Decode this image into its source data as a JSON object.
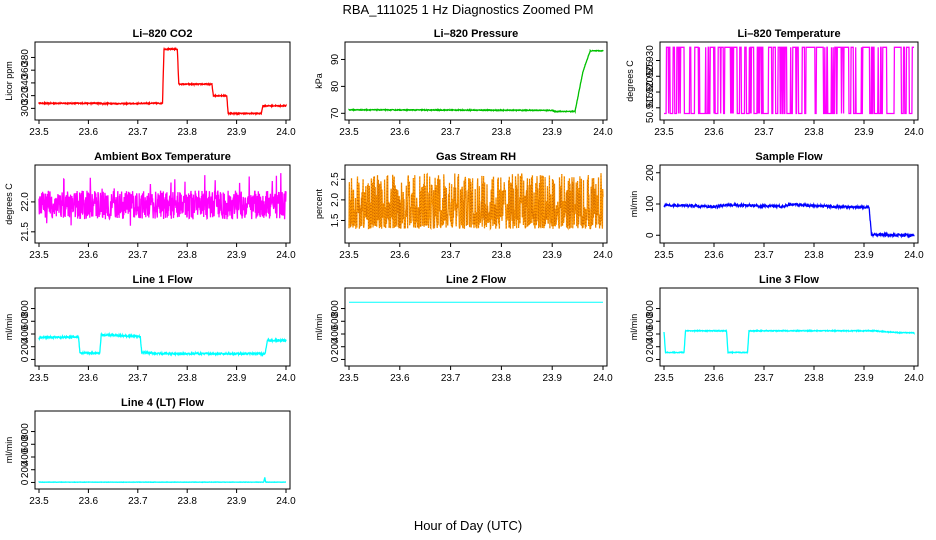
{
  "figure": {
    "title": "RBA_111025  1 Hz Diagnostics Zoomed PM",
    "xlabel": "Hour of Day (UTC)"
  },
  "chart_data": [
    {
      "id": "co2",
      "type": "line",
      "title": "Li–820 CO2",
      "ylabel": "Licor ppm",
      "color": "#ff0000",
      "xlim": [
        23.5,
        24.0
      ],
      "ylim": [
        288,
        398
      ],
      "xticks": [
        23.5,
        23.6,
        23.7,
        23.8,
        23.9,
        24.0
      ],
      "xtick_labels": [
        "23.5",
        "23.6",
        "23.7",
        "23.8",
        "23.9",
        "24.0"
      ],
      "yticks": [
        300,
        320,
        340,
        360,
        380
      ],
      "ytick_labels": [
        "300",
        "320",
        "340",
        "360",
        "380"
      ],
      "noise": 0.8,
      "segments": [
        [
          23.5,
          308
        ],
        [
          23.62,
          308
        ],
        [
          23.63,
          307.5
        ],
        [
          23.7,
          307.5
        ],
        [
          23.71,
          308
        ],
        [
          23.75,
          308
        ],
        [
          23.753,
          393
        ],
        [
          23.78,
          393
        ],
        [
          23.783,
          338
        ],
        [
          23.85,
          338
        ],
        [
          23.853,
          320
        ],
        [
          23.88,
          320
        ],
        [
          23.883,
          292
        ],
        [
          23.95,
          292
        ],
        [
          23.953,
          304
        ],
        [
          24.0,
          304
        ]
      ]
    },
    {
      "id": "pressure",
      "type": "line",
      "title": "Li–820 Pressure",
      "ylabel": "kPa",
      "color": "#00c000",
      "xlim": [
        23.5,
        24.0
      ],
      "ylim": [
        69,
        95
      ],
      "xticks": [
        23.5,
        23.6,
        23.7,
        23.8,
        23.9,
        24.0
      ],
      "xtick_labels": [
        "23.5",
        "23.6",
        "23.7",
        "23.8",
        "23.9",
        "24.0"
      ],
      "yticks": [
        70,
        80,
        90
      ],
      "ytick_labels": [
        "70",
        "80",
        "90"
      ],
      "noise": 0.15,
      "segments": [
        [
          23.5,
          71.3
        ],
        [
          23.9,
          71.1
        ],
        [
          23.905,
          70.7
        ],
        [
          23.945,
          70.7
        ],
        [
          23.96,
          85
        ],
        [
          23.965,
          88
        ],
        [
          23.975,
          93.2
        ],
        [
          24.0,
          93.2
        ]
      ]
    },
    {
      "id": "temperature",
      "type": "line",
      "title": "Li–820 Temperature",
      "ylabel": "degrees C",
      "color": "#ff00ff",
      "xlim": [
        23.5,
        24.0
      ],
      "ylim": [
        50.9124,
        50.9346
      ],
      "xticks": [
        23.5,
        23.6,
        23.7,
        23.8,
        23.9,
        24.0
      ],
      "xtick_labels": [
        "23.5",
        "23.6",
        "23.7",
        "23.8",
        "23.9",
        "24.0"
      ],
      "yticks": [
        50.915,
        50.92,
        50.925,
        50.93
      ],
      "ytick_labels": [
        "50.915",
        "50.920",
        "50.925",
        "50.930"
      ],
      "levels": [
        50.9132,
        50.9342
      ]
    },
    {
      "id": "ambient",
      "type": "line",
      "title": "Ambient Box Temperature",
      "ylabel": "degrees C",
      "color": "#ff00ff",
      "xlim": [
        23.5,
        24.0
      ],
      "ylim": [
        21.38,
        22.55
      ],
      "xticks": [
        23.5,
        23.6,
        23.7,
        23.8,
        23.9,
        24.0
      ],
      "xtick_labels": [
        "23.5",
        "23.6",
        "23.7",
        "23.8",
        "23.9",
        "24.0"
      ],
      "yticks": [
        21.5,
        22.0
      ],
      "ytick_labels": [
        "21.5",
        "22.0"
      ],
      "base": 21.95,
      "amplitude": 0.24,
      "spike": 0.45
    },
    {
      "id": "rh",
      "type": "line",
      "title": "Gas Stream RH",
      "ylabel": "percent",
      "color": "#ff9900",
      "xlim": [
        23.5,
        24.0
      ],
      "ylim": [
        1.05,
        2.75
      ],
      "xticks": [
        23.5,
        23.6,
        23.7,
        23.8,
        23.9,
        24.0
      ],
      "xtick_labels": [
        "23.5",
        "23.6",
        "23.7",
        "23.8",
        "23.9",
        "24.0"
      ],
      "yticks": [
        1.5,
        2.0,
        2.5
      ],
      "ytick_labels": [
        "1.5",
        "2.0",
        "2.5"
      ],
      "base": 1.3,
      "amplitude": 1.35
    },
    {
      "id": "sample",
      "type": "line",
      "title": "Sample Flow",
      "ylabel": "ml/min",
      "color": "#0000ff",
      "xlim": [
        23.5,
        24.0
      ],
      "ylim": [
        -12,
        212
      ],
      "xticks": [
        23.5,
        23.6,
        23.7,
        23.8,
        23.9,
        24.0
      ],
      "xtick_labels": [
        "23.5",
        "23.6",
        "23.7",
        "23.8",
        "23.9",
        "24.0"
      ],
      "yticks": [
        0,
        100,
        200
      ],
      "ytick_labels": [
        "0",
        "100",
        "200"
      ],
      "noise": 4,
      "segments": [
        [
          23.5,
          96
        ],
        [
          23.56,
          94
        ],
        [
          23.6,
          91
        ],
        [
          23.62,
          97
        ],
        [
          23.68,
          95
        ],
        [
          23.7,
          93
        ],
        [
          23.74,
          92
        ],
        [
          23.75,
          99
        ],
        [
          23.8,
          95
        ],
        [
          23.85,
          91
        ],
        [
          23.91,
          90
        ],
        [
          23.915,
          2
        ],
        [
          24.0,
          0
        ]
      ]
    },
    {
      "id": "line1",
      "type": "line",
      "title": "Line 1 Flow",
      "ylabel": "ml/min",
      "color": "#00ffff",
      "xlim": [
        23.5,
        24.0
      ],
      "ylim": [
        -40,
        1060
      ],
      "xticks": [
        23.5,
        23.6,
        23.7,
        23.8,
        23.9,
        24.0
      ],
      "xtick_labels": [
        "23.5",
        "23.6",
        "23.7",
        "23.8",
        "23.9",
        "24.0"
      ],
      "yticks": [
        0,
        200,
        400,
        600,
        800
      ],
      "ytick_labels": [
        "0",
        "200",
        "400",
        "600",
        "800"
      ],
      "noise": 14,
      "segments": [
        [
          23.5,
          330
        ],
        [
          23.503,
          350
        ],
        [
          23.58,
          350
        ],
        [
          23.583,
          100
        ],
        [
          23.623,
          100
        ],
        [
          23.626,
          390
        ],
        [
          23.705,
          360
        ],
        [
          23.708,
          110
        ],
        [
          23.75,
          90
        ],
        [
          23.958,
          90
        ],
        [
          23.962,
          300
        ],
        [
          24.0,
          300
        ]
      ]
    },
    {
      "id": "line2",
      "type": "line",
      "title": "Line 2 Flow",
      "ylabel": "ml/min",
      "color": "#00ffff",
      "xlim": [
        23.5,
        24.0
      ],
      "ylim": [
        -40,
        1060
      ],
      "xticks": [
        23.5,
        23.6,
        23.7,
        23.8,
        23.9,
        24.0
      ],
      "xtick_labels": [
        "23.5",
        "23.6",
        "23.7",
        "23.8",
        "23.9",
        "24.0"
      ],
      "yticks": [
        0,
        200,
        400,
        600,
        800
      ],
      "ytick_labels": [
        "0",
        "200",
        "400",
        "600",
        "800"
      ],
      "noise": 0,
      "segments": [
        [
          23.5,
          900
        ],
        [
          24.0,
          900
        ]
      ]
    },
    {
      "id": "line3",
      "type": "line",
      "title": "Line 3 Flow",
      "ylabel": "ml/min",
      "color": "#00ffff",
      "xlim": [
        23.5,
        24.0
      ],
      "ylim": [
        -40,
        1060
      ],
      "xticks": [
        23.5,
        23.6,
        23.7,
        23.8,
        23.9,
        24.0
      ],
      "xtick_labels": [
        "23.5",
        "23.6",
        "23.7",
        "23.8",
        "23.9",
        "24.0"
      ],
      "yticks": [
        0,
        200,
        400,
        600,
        800
      ],
      "ytick_labels": [
        "0",
        "200",
        "400",
        "600",
        "800"
      ],
      "noise": 6,
      "segments": [
        [
          23.5,
          430
        ],
        [
          23.503,
          110
        ],
        [
          23.54,
          110
        ],
        [
          23.543,
          450
        ],
        [
          23.625,
          450
        ],
        [
          23.628,
          110
        ],
        [
          23.667,
          110
        ],
        [
          23.67,
          450
        ],
        [
          23.92,
          450
        ],
        [
          23.97,
          420
        ],
        [
          24.0,
          420
        ]
      ]
    },
    {
      "id": "line4",
      "type": "line",
      "title": "Line 4 (LT) Flow",
      "ylabel": "ml/min",
      "color": "#00ffff",
      "xlim": [
        23.5,
        24.0
      ],
      "ylim": [
        -40,
        1060
      ],
      "xticks": [
        23.5,
        23.6,
        23.7,
        23.8,
        23.9,
        24.0
      ],
      "xtick_labels": [
        "23.5",
        "23.6",
        "23.7",
        "23.8",
        "23.9",
        "24.0"
      ],
      "yticks": [
        0,
        200,
        400,
        600,
        800
      ],
      "ytick_labels": [
        "0",
        "200",
        "400",
        "600",
        "800"
      ],
      "noise": 2,
      "segments": [
        [
          23.5,
          5
        ],
        [
          23.955,
          5
        ],
        [
          23.957,
          80
        ],
        [
          23.959,
          5
        ],
        [
          24.0,
          5
        ]
      ]
    }
  ]
}
